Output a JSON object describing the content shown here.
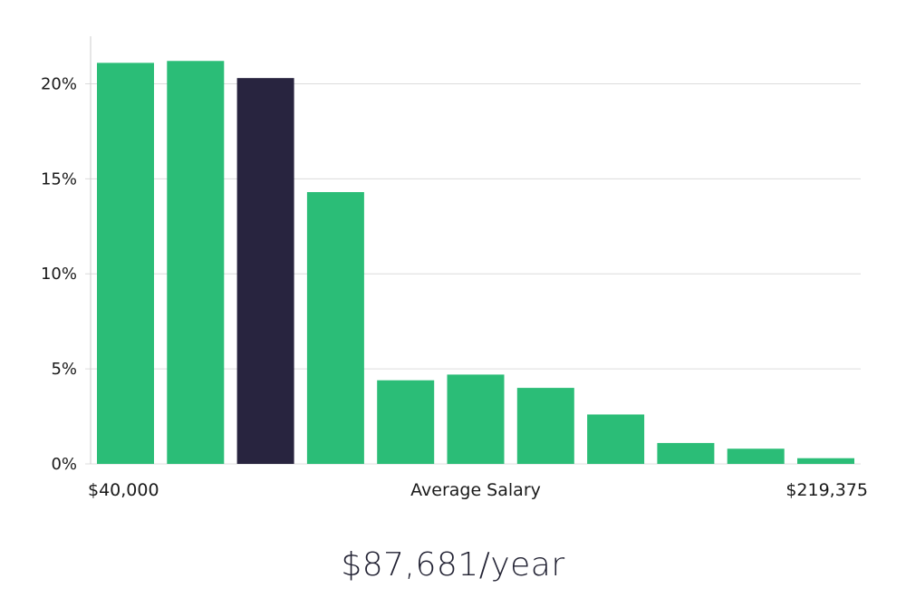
{
  "chart_data": {
    "type": "bar",
    "title": "",
    "xlabel": "Average Salary",
    "ylabel": "",
    "x_start_label": "$40,000",
    "x_end_label": "$219,375",
    "values": [
      21.1,
      21.2,
      20.3,
      14.3,
      4.4,
      4.7,
      4.0,
      2.6,
      1.1,
      0.8,
      0.3
    ],
    "highlight_index": 2,
    "ylim": [
      0,
      22.5
    ],
    "yticks": [
      0,
      5,
      10,
      15,
      20
    ],
    "ytick_labels": [
      "0%",
      "5%",
      "10%",
      "15%",
      "20%"
    ],
    "grid": true,
    "colors": {
      "bar": "#2bbd77",
      "highlight": "#28243f",
      "grid": "#dcdcdc",
      "axis": "#cccccc"
    }
  },
  "headline": "$87,681/year"
}
